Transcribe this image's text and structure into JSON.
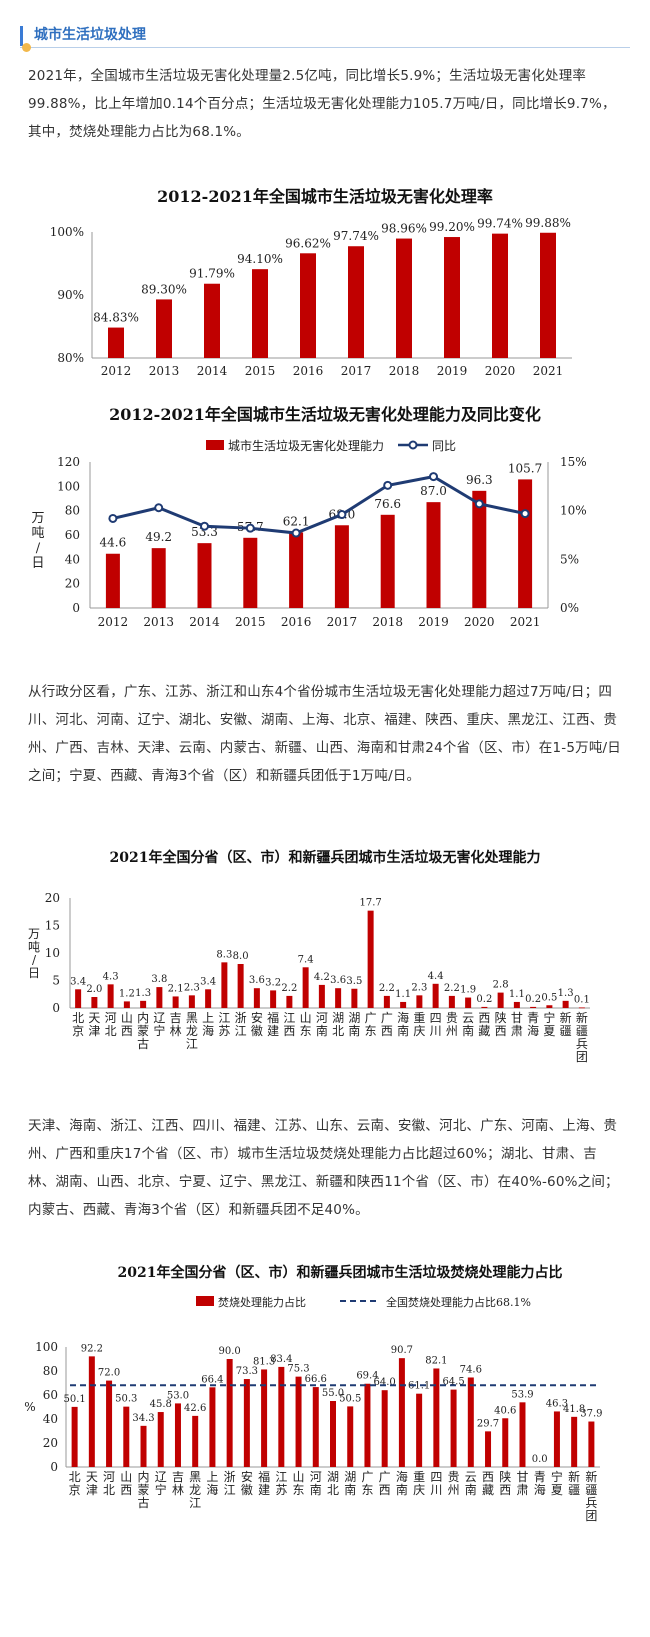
{
  "section_title": "城市生活垃圾处理",
  "paragraphs": {
    "p1": "2021年，全国城市生活垃圾无害化处理量2.5亿吨，同比增长5.9%；生活垃圾无害化处理率99.88%，比上年增加0.14个百分点；生活垃圾无害化处理能力105.7万吨/日，同比增长9.7%，其中，焚烧处理能力占比为68.1%。",
    "p2": "从行政分区看，广东、江苏、浙江和山东4个省份城市生活垃圾无害化处理能力超过7万吨/日；四川、河北、河南、辽宁、湖北、安徽、湖南、上海、北京、福建、陕西、重庆、黑龙江、江西、贵州、广西、吉林、天津、云南、内蒙古、新疆、山西、海南和甘肃24个省（区、市）在1-5万吨/日之间；宁夏、西藏、青海3个省（区）和新疆兵团低于1万吨/日。",
    "p3": "天津、海南、浙江、江西、四川、福建、江苏、山东、云南、安徽、河北、广东、河南、上海、贵州、广西和重庆17个省（区、市）城市生活垃圾焚烧处理能力占比超过60%；湖北、甘肃、吉林、湖南、山西、北京、宁夏、辽宁、黑龙江、新疆和陕西11个省（区、市）在40%-60%之间；内蒙古、西藏、青海3个省（区）和新疆兵团不足40%。"
  },
  "colors": {
    "bar": "#c00000",
    "line": "#1f3b73",
    "accent": "#3a7bd5"
  },
  "chart_data": [
    {
      "type": "bar",
      "title": "2012-2021年全国城市生活垃圾无害化处理率",
      "categories": [
        "2012",
        "2013",
        "2014",
        "2015",
        "2016",
        "2017",
        "2018",
        "2019",
        "2020",
        "2021"
      ],
      "values": [
        84.83,
        89.3,
        91.79,
        94.1,
        96.62,
        97.74,
        98.96,
        99.2,
        99.74,
        99.88
      ],
      "value_labels": [
        "84.83%",
        "89.30%",
        "91.79%",
        "94.10%",
        "96.62%",
        "97.74%",
        "98.96%",
        "99.20%",
        "99.74%",
        "99.88%"
      ],
      "ylim": [
        80,
        100
      ],
      "yticks": [
        80,
        90,
        100
      ],
      "ytick_labels": [
        "80%",
        "90%",
        "100%"
      ]
    },
    {
      "type": "bar",
      "title": "2012-2021年全国城市生活垃圾无害化处理能力及同比变化",
      "categories": [
        "2012",
        "2013",
        "2014",
        "2015",
        "2016",
        "2017",
        "2018",
        "2019",
        "2020",
        "2021"
      ],
      "series": [
        {
          "name": "城市生活垃圾无害化处理能力",
          "values": [
            44.6,
            49.2,
            53.3,
            57.7,
            62.1,
            68.0,
            76.6,
            87.0,
            96.3,
            105.7
          ],
          "value_labels": [
            "44.6",
            "49.2",
            "53.3",
            "57.7",
            "62.1",
            "68.0",
            "76.6",
            "87.0",
            "96.3",
            "105.7"
          ]
        },
        {
          "name": "同比",
          "type": "line",
          "values": [
            9.2,
            10.3,
            8.4,
            8.2,
            7.7,
            9.6,
            12.6,
            13.5,
            10.7,
            9.7
          ]
        }
      ],
      "ylabel": "万吨/日",
      "ylim": [
        0,
        120
      ],
      "yticks": [
        0,
        20,
        40,
        60,
        80,
        100,
        120
      ],
      "y2lim": [
        0,
        15
      ],
      "y2ticks": [
        "0%",
        "5%",
        "10%",
        "15%"
      ],
      "legend": "top"
    },
    {
      "type": "bar",
      "title": "2021年全国分省（区、市）和新疆兵团城市生活垃圾无害化处理能力",
      "categories": [
        "北京",
        "天津",
        "河北",
        "山西",
        "内蒙古",
        "辽宁",
        "吉林",
        "黑龙江",
        "上海",
        "江苏",
        "浙江",
        "安徽",
        "福建",
        "江西",
        "山东",
        "河南",
        "湖北",
        "湖南",
        "广东",
        "广西",
        "海南",
        "重庆",
        "四川",
        "贵州",
        "云南",
        "西藏",
        "陕西",
        "甘肃",
        "青海",
        "宁夏",
        "新疆",
        "新疆兵团"
      ],
      "values": [
        3.4,
        2.0,
        4.3,
        1.2,
        1.3,
        3.8,
        2.1,
        2.3,
        3.4,
        8.3,
        8.0,
        3.6,
        3.2,
        2.2,
        7.4,
        4.2,
        3.6,
        3.5,
        17.7,
        2.2,
        1.1,
        2.3,
        4.4,
        2.2,
        1.9,
        0.2,
        2.8,
        1.1,
        0.2,
        0.5,
        1.3,
        0.1
      ],
      "ylabel": "万吨/日",
      "ylim": [
        0,
        20
      ],
      "yticks": [
        0,
        5,
        10,
        15,
        20
      ]
    },
    {
      "type": "bar",
      "title": "2021年全国分省（区、市）和新疆兵团城市生活垃圾焚烧处理能力占比",
      "categories": [
        "北京",
        "天津",
        "河北",
        "山西",
        "内蒙古",
        "辽宁",
        "吉林",
        "黑龙江",
        "上海",
        "浙江",
        "安徽",
        "福建",
        "江苏",
        "山东",
        "河南",
        "湖北",
        "湖南",
        "广东",
        "广西",
        "海南",
        "重庆",
        "四川",
        "贵州",
        "云南",
        "西藏",
        "陕西",
        "甘肃",
        "青海",
        "宁夏",
        "新疆",
        "新疆兵团"
      ],
      "series": [
        {
          "name": "焚烧处理能力占比",
          "values": [
            50.1,
            92.2,
            72.0,
            50.3,
            34.3,
            45.8,
            53.0,
            42.6,
            66.4,
            90.0,
            73.3,
            81.3,
            83.4,
            75.3,
            66.6,
            55.0,
            50.5,
            69.4,
            64.0,
            90.7,
            61.1,
            82.1,
            64.5,
            74.6,
            29.7,
            40.6,
            53.9,
            0.0,
            46.3,
            41.8,
            37.9
          ]
        },
        {
          "name": "全国焚烧处理能力占比68.1%",
          "type": "reference",
          "value": 68.1
        }
      ],
      "ylabel": "%",
      "ylim": [
        0,
        100
      ],
      "yticks": [
        0,
        20,
        40,
        60,
        80,
        100
      ],
      "legend": "top"
    }
  ]
}
